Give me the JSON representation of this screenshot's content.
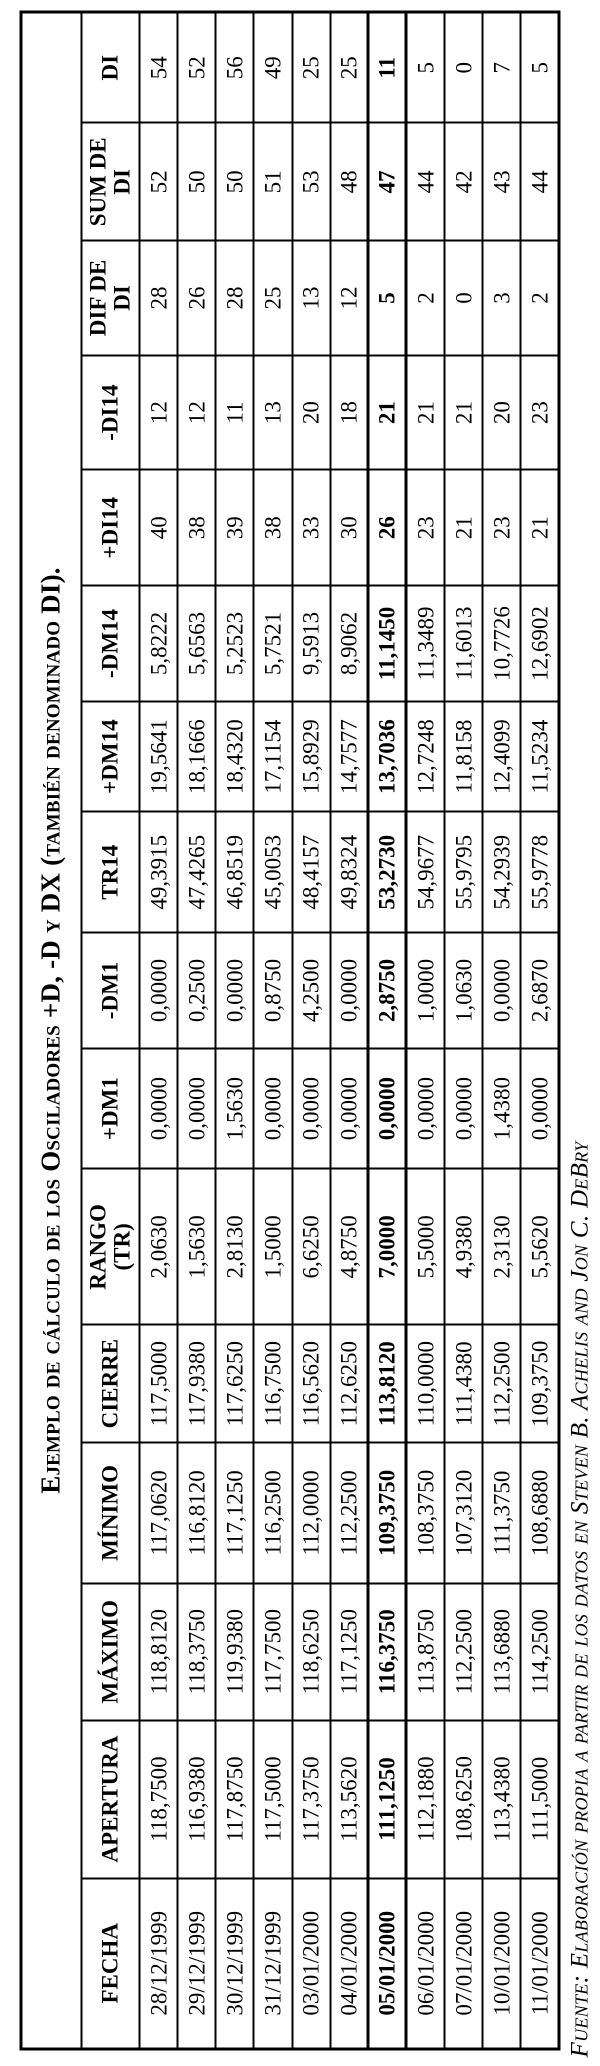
{
  "title": "Ejemplo de cálculo de los Osciladores +D, -D y DX (también denominado DI).",
  "source_note": "Fuente: Elaboración propia a partir de los datos en Steven B. Achelis and Jon C. DeBry",
  "table": {
    "columns": [
      "FECHA",
      "APERTURA",
      "MÁXIMO",
      "MÍNIMO",
      "CIERRE",
      "RANGO\n(TR)",
      "+DM1",
      "-DM1",
      "TR14",
      "+DM14",
      "-DM14",
      "+DI14",
      "-DI14",
      "DIF DE\nDI",
      "SUM DE\nDI",
      "DI"
    ],
    "highlighted_date": "05/01/2000",
    "rows": [
      [
        "28/12/1999",
        "118,7500",
        "118,8120",
        "117,0620",
        "117,5000",
        "2,0630",
        "0,0000",
        "0,0000",
        "49,3915",
        "19,5641",
        "5,8222",
        "40",
        "12",
        "28",
        "52",
        "54"
      ],
      [
        "29/12/1999",
        "116,9380",
        "118,3750",
        "116,8120",
        "117,9380",
        "1,5630",
        "0,0000",
        "0,2500",
        "47,4265",
        "18,1666",
        "5,6563",
        "38",
        "12",
        "26",
        "50",
        "52"
      ],
      [
        "30/12/1999",
        "117,8750",
        "119,9380",
        "117,1250",
        "117,6250",
        "2,8130",
        "1,5630",
        "0,0000",
        "46,8519",
        "18,4320",
        "5,2523",
        "39",
        "11",
        "28",
        "50",
        "56"
      ],
      [
        "31/12/1999",
        "117,5000",
        "117,7500",
        "116,2500",
        "116,7500",
        "1,5000",
        "0,0000",
        "0,8750",
        "45,0053",
        "17,1154",
        "5,7521",
        "38",
        "13",
        "25",
        "51",
        "49"
      ],
      [
        "03/01/2000",
        "117,3750",
        "118,6250",
        "112,0000",
        "116,5620",
        "6,6250",
        "0,0000",
        "4,2500",
        "48,4157",
        "15,8929",
        "9,5913",
        "33",
        "20",
        "13",
        "53",
        "25"
      ],
      [
        "04/01/2000",
        "113,5620",
        "117,1250",
        "112,2500",
        "112,6250",
        "4,8750",
        "0,0000",
        "0,0000",
        "49,8324",
        "14,7577",
        "8,9062",
        "30",
        "18",
        "12",
        "48",
        "25"
      ],
      [
        "05/01/2000",
        "111,1250",
        "116,3750",
        "109,3750",
        "113,8120",
        "7,0000",
        "0,0000",
        "2,8750",
        "53,2730",
        "13,7036",
        "11,1450",
        "26",
        "21",
        "5",
        "47",
        "11"
      ],
      [
        "06/01/2000",
        "112,1880",
        "113,8750",
        "108,3750",
        "110,0000",
        "5,5000",
        "0,0000",
        "1,0000",
        "54,9677",
        "12,7248",
        "11,3489",
        "23",
        "21",
        "2",
        "44",
        "5"
      ],
      [
        "07/01/2000",
        "108,6250",
        "112,2500",
        "107,3120",
        "111,4380",
        "4,9380",
        "0,0000",
        "1,0630",
        "55,9795",
        "11,8158",
        "11,6013",
        "21",
        "21",
        "0",
        "42",
        "0"
      ],
      [
        "10/01/2000",
        "113,4380",
        "113,6880",
        "111,3750",
        "112,2500",
        "2,3130",
        "1,4380",
        "0,0000",
        "54,2939",
        "12,4099",
        "10,7726",
        "23",
        "20",
        "3",
        "43",
        "7"
      ],
      [
        "11/01/2000",
        "111,5000",
        "114,2500",
        "108,6880",
        "109,3750",
        "5,5620",
        "0,0000",
        "2,6870",
        "55,9778",
        "11,5234",
        "12,6902",
        "21",
        "23",
        "2",
        "44",
        "5"
      ]
    ]
  }
}
